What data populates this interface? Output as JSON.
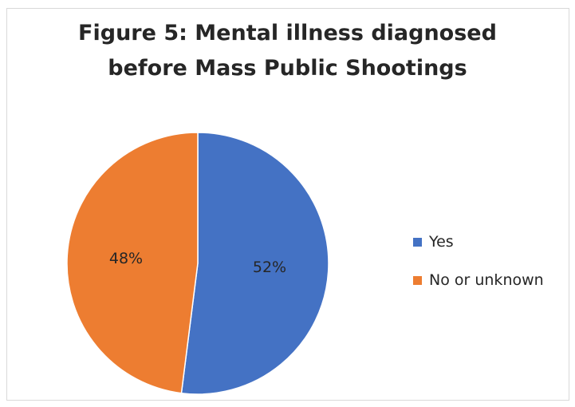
{
  "chart_data": {
    "type": "pie",
    "title_lines": [
      "Figure 5: Mental illness diagnosed",
      "before Mass Public Shootings"
    ],
    "categories": [
      "Yes",
      "No or unknown"
    ],
    "values": [
      52,
      48
    ],
    "data_labels": [
      "52%",
      "48%"
    ],
    "colors": [
      "#4472c4",
      "#ed7d31"
    ],
    "legend_position": "right"
  }
}
